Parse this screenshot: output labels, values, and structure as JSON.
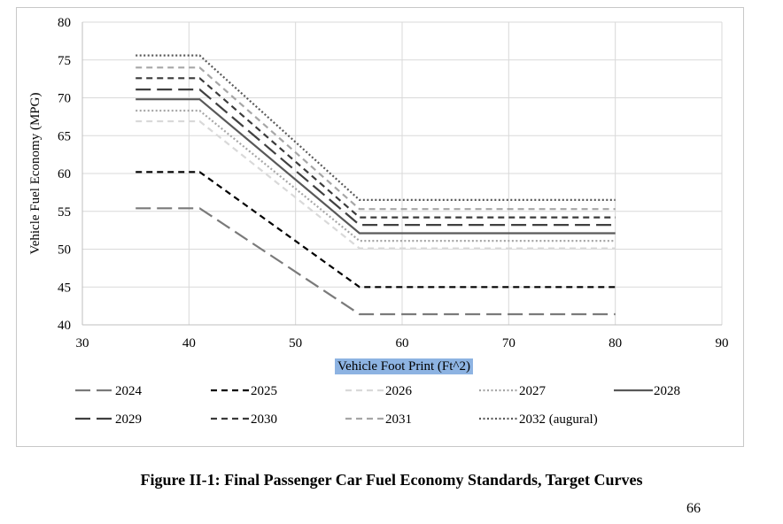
{
  "chart_data": {
    "type": "line",
    "title": "",
    "xlabel": "Vehicle Foot Print (Ft^2)",
    "ylabel": "Vehicle Fuel Economy (MPG)",
    "xlim": [
      30,
      90
    ],
    "ylim": [
      40,
      80
    ],
    "xticks": [
      30,
      40,
      50,
      60,
      70,
      80,
      90
    ],
    "yticks": [
      40,
      45,
      50,
      55,
      60,
      65,
      70,
      75,
      80
    ],
    "grid": true,
    "legend_position": "bottom",
    "x": [
      35,
      41,
      56,
      80
    ],
    "series": [
      {
        "name": "2024",
        "values": [
          55.4,
          55.4,
          41.4,
          41.4
        ],
        "color": "#7a7a7a",
        "dash": "long-dash"
      },
      {
        "name": "2025",
        "values": [
          60.2,
          60.2,
          45.0,
          45.0
        ],
        "color": "#000000",
        "dash": "dash"
      },
      {
        "name": "2026",
        "values": [
          66.9,
          66.9,
          50.1,
          50.1
        ],
        "color": "#d9d9d9",
        "dash": "dash"
      },
      {
        "name": "2027",
        "values": [
          68.3,
          68.3,
          51.1,
          51.1
        ],
        "color": "#a6a6a6",
        "dash": "dot"
      },
      {
        "name": "2028",
        "values": [
          69.8,
          69.8,
          52.1,
          52.1
        ],
        "color": "#595959",
        "dash": "solid"
      },
      {
        "name": "2029",
        "values": [
          71.1,
          71.1,
          53.2,
          53.2
        ],
        "color": "#404040",
        "dash": "long-dash"
      },
      {
        "name": "2030",
        "values": [
          72.6,
          72.6,
          54.2,
          54.2
        ],
        "color": "#3a3a3a",
        "dash": "dash"
      },
      {
        "name": "2031",
        "values": [
          74.0,
          74.0,
          55.3,
          55.3
        ],
        "color": "#a6a6a6",
        "dash": "dash"
      },
      {
        "name": "2032 (augural)",
        "values": [
          75.6,
          75.6,
          56.5,
          56.5
        ],
        "color": "#595959",
        "dash": "dot"
      }
    ]
  },
  "caption": "Figure II-1: Final Passenger Car Fuel Economy Standards, Target Curves",
  "page_number": "66",
  "colors": {
    "grid": "#d9d9d9",
    "axis_label_highlight": "#8db3e2"
  }
}
